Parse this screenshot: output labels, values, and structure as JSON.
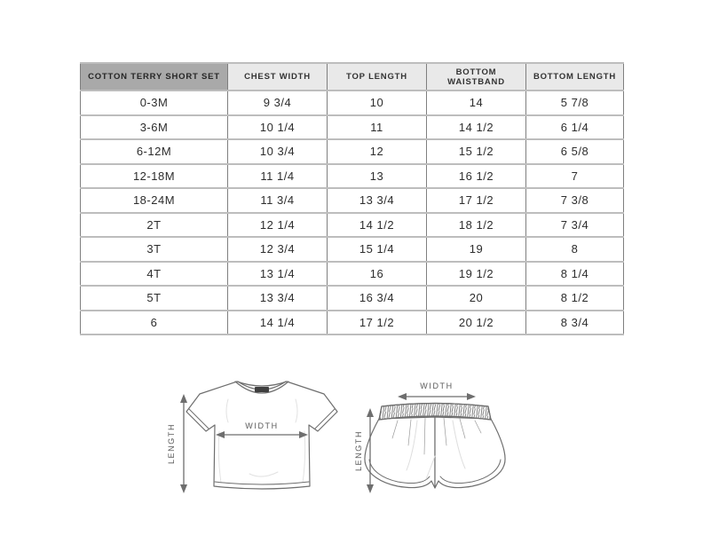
{
  "chart_data": {
    "type": "table",
    "columns": [
      "COTTON TERRY SHORT SET",
      "CHEST WIDTH",
      "TOP LENGTH",
      "BOTTOM WAISTBAND",
      "BOTTOM LENGTH"
    ],
    "rows": [
      [
        "0-3M",
        "9 3/4",
        "10",
        "14",
        "5 7/8"
      ],
      [
        "3-6M",
        "10 1/4",
        "11",
        "14 1/2",
        "6 1/4"
      ],
      [
        "6-12M",
        "10 3/4",
        "12",
        "15 1/2",
        "6 5/8"
      ],
      [
        "12-18M",
        "11 1/4",
        "13",
        "16 1/2",
        "7"
      ],
      [
        "18-24M",
        "11 3/4",
        "13 3/4",
        "17 1/2",
        "7 3/8"
      ],
      [
        "2T",
        "12 1/4",
        "14 1/2",
        "18 1/2",
        "7 3/4"
      ],
      [
        "3T",
        "12 3/4",
        "15 1/4",
        "19",
        "8"
      ],
      [
        "4T",
        "13 1/4",
        "16",
        "19 1/2",
        "8 1/4"
      ],
      [
        "5T",
        "13 3/4",
        "16 3/4",
        "20",
        "8 1/2"
      ],
      [
        "6",
        "14 1/4",
        "17 1/2",
        "20 1/2",
        "8 3/4"
      ]
    ]
  },
  "diagrams": {
    "tshirt": {
      "width_label": "WIDTH",
      "length_label": "LENGTH"
    },
    "shorts": {
      "width_label": "WIDTH",
      "length_label": "LENGTH"
    }
  },
  "colors": {
    "header_first_bg": "#a9a9a9",
    "header_bg": "#e9e9e9",
    "grid_vertical": "#7f7f7f",
    "grid_horizontal": "#bdbdbd",
    "text": "#2d2d2d",
    "diagram_line": "#6e6e6e"
  }
}
